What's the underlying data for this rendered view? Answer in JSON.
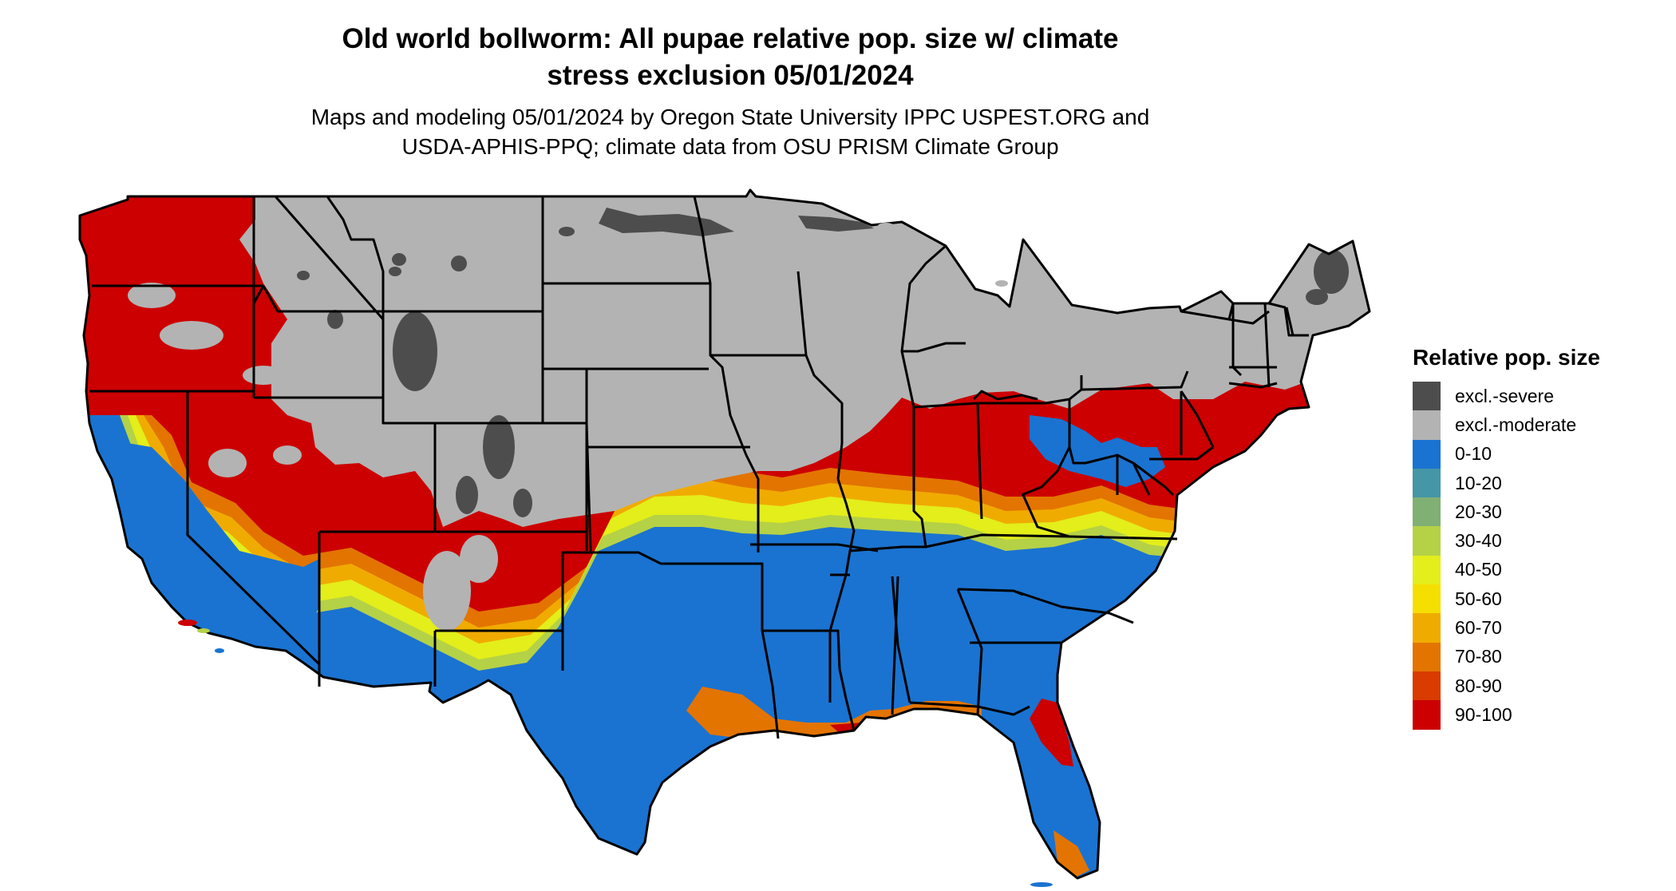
{
  "title_line1": "Old world bollworm: All pupae relative pop. size w/ climate",
  "title_line2": "stress exclusion 05/01/2024",
  "subtitle_line1": "Maps and modeling 05/01/2024 by Oregon State University IPPC USPEST.ORG and",
  "subtitle_line2": "USDA-APHIS-PPQ; climate data from OSU PRISM Climate Group",
  "legend": {
    "title": "Relative pop. size",
    "items": [
      {
        "label": "excl.-severe",
        "color": "#4d4d4d"
      },
      {
        "label": "excl.-moderate",
        "color": "#b3b3b3"
      },
      {
        "label": "0-10",
        "color": "#1a73d1"
      },
      {
        "label": "10-20",
        "color": "#4596a6"
      },
      {
        "label": "20-30",
        "color": "#80b074"
      },
      {
        "label": "30-40",
        "color": "#b5d146"
      },
      {
        "label": "40-50",
        "color": "#e3ee1a"
      },
      {
        "label": "50-60",
        "color": "#f5df00"
      },
      {
        "label": "60-70",
        "color": "#f0ab00"
      },
      {
        "label": "70-80",
        "color": "#e37400"
      },
      {
        "label": "80-90",
        "color": "#d93b00"
      },
      {
        "label": "90-100",
        "color": "#cc0000"
      }
    ]
  }
}
